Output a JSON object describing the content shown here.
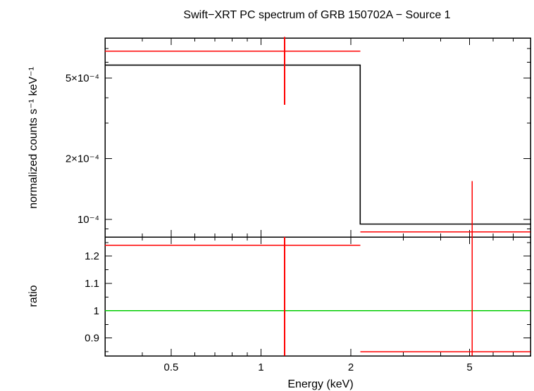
{
  "chart_data": [
    {
      "type": "line",
      "panel": "spectrum",
      "title": "Swift−XRT PC spectrum of GRB 150702A − Source 1",
      "ylabel": "normalized counts s⁻¹ keV⁻¹",
      "xscale": "log",
      "yscale": "log",
      "xlim": [
        0.3,
        8.0
      ],
      "ylim": [
        8.2e-05,
        0.00079
      ],
      "y_tick_labels": [
        {
          "value": 0.0005,
          "label": "5×10⁻⁴"
        },
        {
          "value": 0.0002,
          "label": "2×10⁻⁴"
        },
        {
          "value": 0.0001,
          "label": "10⁻⁴"
        }
      ],
      "series": [
        {
          "kind": "data",
          "color": "#ff0000",
          "points": [
            {
              "x": 1.2,
              "x_low": 0.3,
              "x_high": 2.15,
              "y": 0.00068,
              "y_low": 0.00037,
              "y_high": 0.0008
            },
            {
              "x": 5.1,
              "x_low": 2.15,
              "x_high": 8.0,
              "y": 8.7e-05,
              "y_low": 8.2e-05,
              "y_high": 0.000155
            }
          ]
        },
        {
          "kind": "model",
          "color": "#000000",
          "steps": [
            {
              "x_low": 0.3,
              "x_high": 2.15,
              "y": 0.00058
            },
            {
              "x_low": 2.15,
              "x_high": 8.0,
              "y": 9.5e-05
            }
          ]
        }
      ]
    },
    {
      "type": "line",
      "panel": "ratio",
      "xlabel": "Energy (keV)",
      "ylabel": "ratio",
      "xscale": "log",
      "xlim": [
        0.3,
        8.0
      ],
      "ylim": [
        0.835,
        1.27
      ],
      "x_ticks": [
        {
          "value": 0.5,
          "label": "0.5"
        },
        {
          "value": 1,
          "label": "1"
        },
        {
          "value": 2,
          "label": "2"
        },
        {
          "value": 5,
          "label": "5"
        }
      ],
      "y_ticks": [
        {
          "value": 0.9,
          "label": "0.9"
        },
        {
          "value": 1.0,
          "label": "1"
        },
        {
          "value": 1.1,
          "label": "1.1"
        },
        {
          "value": 1.2,
          "label": "1.2"
        }
      ],
      "series": [
        {
          "kind": "data",
          "color": "#ff0000",
          "points": [
            {
              "x": 1.2,
              "x_low": 0.3,
              "x_high": 2.15,
              "y": 1.24,
              "y_low": 0.835,
              "y_high": 1.27
            },
            {
              "x": 5.1,
              "x_low": 2.15,
              "x_high": 8.0,
              "y": 0.85,
              "y_low": 0.835,
              "y_high": 1.27
            }
          ]
        },
        {
          "kind": "reference",
          "color": "#00cc00",
          "y": 1.0
        }
      ]
    }
  ]
}
